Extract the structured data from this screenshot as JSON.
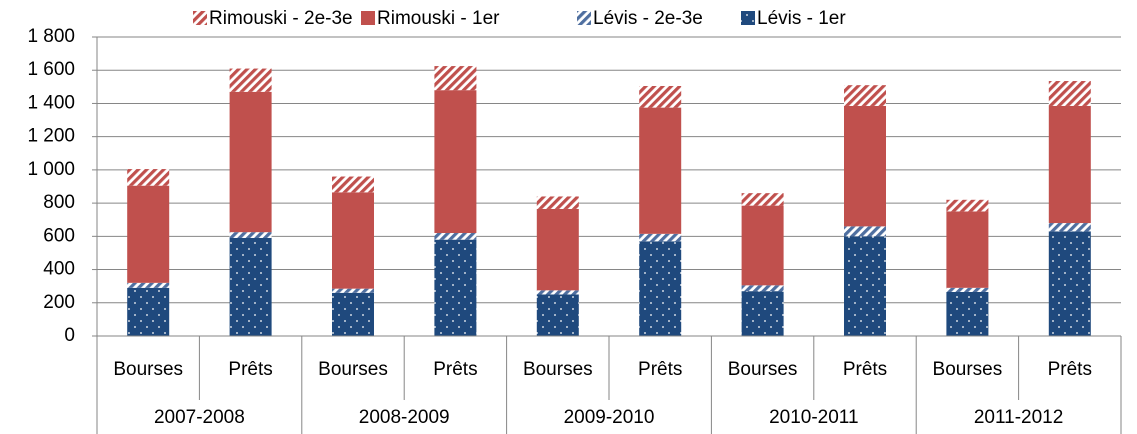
{
  "chart_data": {
    "type": "stacked_bar",
    "groups": [
      "2007-2008",
      "2008-2009",
      "2009-2010",
      "2010-2011",
      "2011-2012"
    ],
    "categories": [
      "Bourses",
      "Prêts",
      "Bourses",
      "Prêts",
      "Bourses",
      "Prêts",
      "Bourses",
      "Prêts",
      "Bourses",
      "Prêts"
    ],
    "series": [
      {
        "name": "Lévis - 1er",
        "color": "#1f497d",
        "pattern": "dots",
        "values": [
          290,
          590,
          260,
          580,
          250,
          570,
          270,
          600,
          265,
          630
        ]
      },
      {
        "name": "Lévis - 2e-3e",
        "color": "#4f6fa0",
        "pattern": "stripes",
        "values": [
          30,
          35,
          25,
          40,
          25,
          45,
          35,
          60,
          25,
          50
        ]
      },
      {
        "name": "Rimouski - 1er",
        "color": "#c0504d",
        "pattern": "solid",
        "values": [
          585,
          845,
          580,
          860,
          490,
          760,
          480,
          725,
          460,
          705
        ]
      },
      {
        "name": "Rimouski - 2e-3e",
        "color": "#c0504d",
        "pattern": "stripes",
        "values": [
          100,
          140,
          95,
          145,
          75,
          130,
          75,
          125,
          70,
          150
        ]
      }
    ],
    "ylim": [
      0,
      1800
    ],
    "yticks": [
      0,
      200,
      400,
      600,
      800,
      {
        "value": 1000,
        "label": "1 000"
      },
      {
        "value": 1200,
        "label": "1 200"
      },
      {
        "value": 1400,
        "label": "1 400"
      },
      {
        "value": 1600,
        "label": "1 600"
      },
      {
        "value": 1800,
        "label": "1 800"
      }
    ],
    "grid": true
  }
}
